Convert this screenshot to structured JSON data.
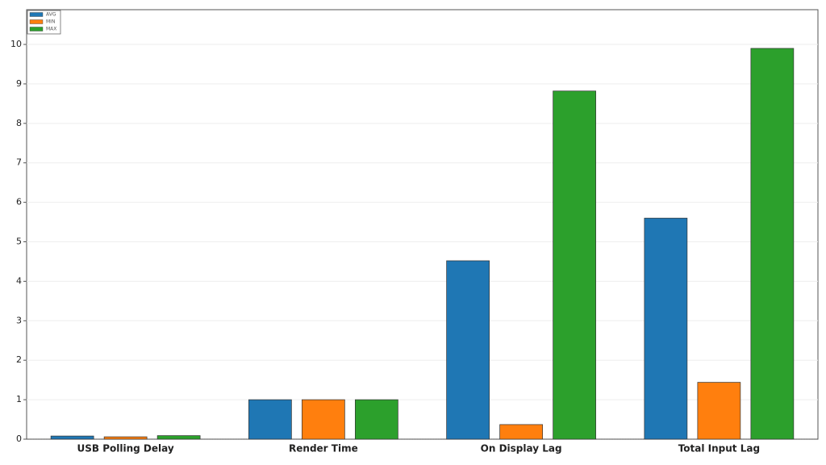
{
  "chart_data": {
    "type": "bar",
    "categories": [
      "USB Polling Delay",
      "Render Time",
      "On Display Lag",
      "Total Input Lag"
    ],
    "series": [
      {
        "name": "AVG",
        "color": "#1f77b4",
        "values": [
          0.08,
          1.0,
          4.52,
          5.6
        ]
      },
      {
        "name": "MIN",
        "color": "#ff7f0e",
        "values": [
          0.06,
          1.0,
          0.37,
          1.44
        ]
      },
      {
        "name": "MAX",
        "color": "#2ca02c",
        "values": [
          0.09,
          1.0,
          8.82,
          9.9
        ]
      }
    ],
    "ylim": [
      0,
      10.88
    ],
    "yticks": [
      0,
      1,
      2,
      3,
      4,
      5,
      6,
      7,
      8,
      9,
      10
    ],
    "grid": true,
    "legend": "upper-left"
  }
}
